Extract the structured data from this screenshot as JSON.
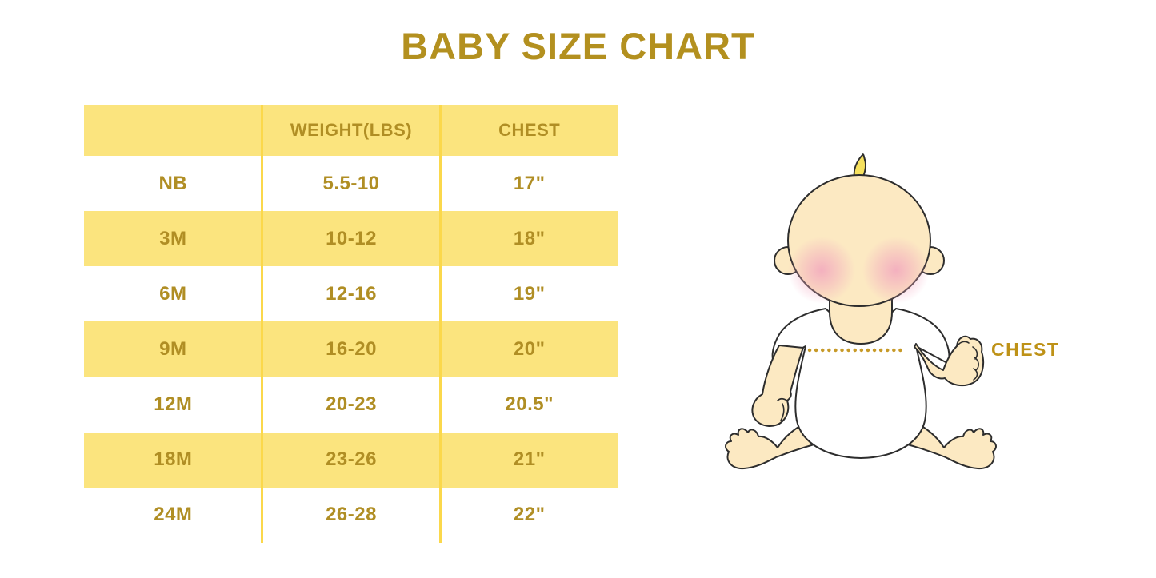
{
  "page": {
    "title": "BABY SIZE CHART"
  },
  "colors": {
    "title_gold": "#B3901F",
    "gold_text": "#B08E24",
    "row_yellow": "#FBE47E",
    "divider_yellow": "#FBD84B",
    "label_gold": "#BE9217",
    "skin": "#FCE9C2",
    "cheek_pink": "#F2A6BE",
    "hair_yellow": "#F6E15E",
    "outline": "#2D2D2D",
    "dot_gold": "#C79A28",
    "page_bg": "#FFFFFF"
  },
  "chart_data": {
    "type": "table",
    "title": "BABY SIZE CHART",
    "columns": [
      "",
      "WEIGHT(LBS)",
      "CHEST"
    ],
    "rows": [
      [
        "NB",
        "5.5-10",
        "17\""
      ],
      [
        "3M",
        "10-12",
        "18\""
      ],
      [
        "6M",
        "12-16",
        "19\""
      ],
      [
        "9M",
        "16-20",
        "20\""
      ],
      [
        "12M",
        "20-23",
        "20.5\""
      ],
      [
        "18M",
        "23-26",
        "21\""
      ],
      [
        "24M",
        "26-28",
        "22\""
      ]
    ],
    "layout_hints": {
      "header_fill": "yellow",
      "row_striping": "white/yellow alternating starting white",
      "grid": "vertical dividers only"
    }
  },
  "illustration": {
    "name": "seated-baby-with-chest-measurement",
    "chest_label": "CHEST",
    "measure_line": "dotted horizontal line across baby's chest"
  }
}
